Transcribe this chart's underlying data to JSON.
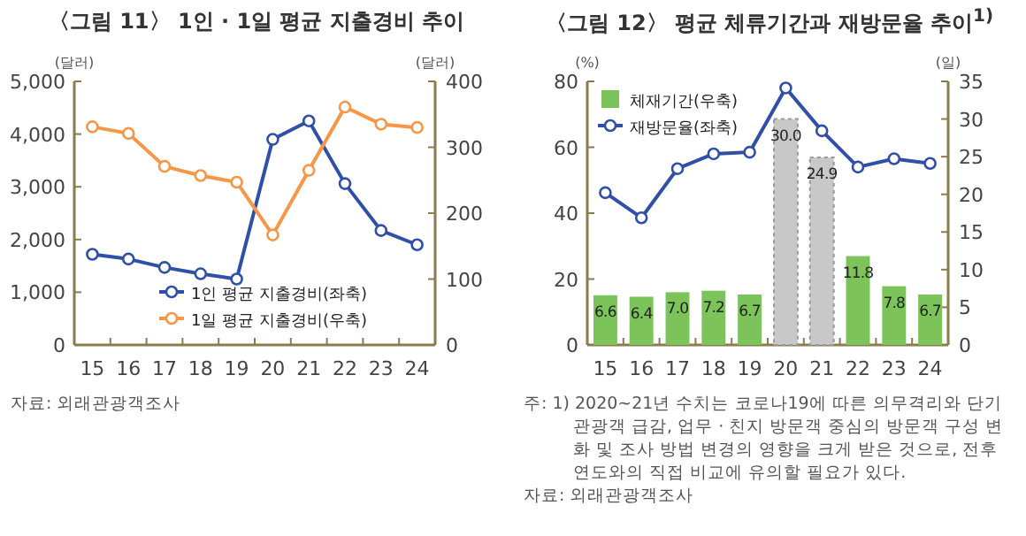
{
  "chart_data": [
    {
      "type": "line",
      "title": "〈그림 11〉 1인 · 1일 평균 지출경비 추이",
      "ylabel": "(달러)",
      "y2label": "(달러)",
      "categories": [
        "15",
        "16",
        "17",
        "18",
        "19",
        "20",
        "21",
        "22",
        "23",
        "24"
      ],
      "series": [
        {
          "name": "1인 평균 지출경비(좌축)",
          "color": "#2f4fa8",
          "values": [
            1720,
            1630,
            1470,
            1350,
            1250,
            3900,
            4250,
            3060,
            2170,
            1900
          ]
        },
        {
          "name": "1일 평균 지출경비(우축)",
          "color": "#f79646",
          "axis": "y2",
          "values": [
            331,
            321,
            271,
            257,
            247,
            167,
            265,
            361,
            335,
            330
          ]
        }
      ],
      "ylim": [
        0,
        5000
      ],
      "yticks": [
        {
          "value": 0,
          "label": "0"
        },
        {
          "value": 1000,
          "label": "1,000"
        },
        {
          "value": 2000,
          "label": "2,000"
        },
        {
          "value": 3000,
          "label": "3,000"
        },
        {
          "value": 4000,
          "label": "4,000"
        },
        {
          "value": 5000,
          "label": "5,000"
        }
      ],
      "y2lim": [
        0,
        400
      ],
      "y2ticks": [
        0,
        100,
        200,
        300,
        400
      ],
      "marker": "circle",
      "legend": "bottom right",
      "grid": false,
      "annotations": [
        "자료: 외래관광객조사"
      ]
    },
    {
      "type": "bar",
      "title": "〈그림 12〉 평균 체류기간과 재방문율 추이$^{1)}$",
      "ylabel": "(%)",
      "y2label": "(일)",
      "categories": [
        "15",
        "16",
        "17",
        "18",
        "19",
        "20",
        "21",
        "22",
        "23",
        "24"
      ],
      "series": [
        {
          "name": "체재기간(우축)",
          "type": "bar",
          "axis": "y2",
          "color": "#7cc35a",
          "colors": [
            "#7cc35a",
            "#7cc35a",
            "#7cc35a",
            "#7cc35a",
            "#7cc35a",
            "#c8c8c8",
            "#c8c8c8",
            "#7cc35a",
            "#7cc35a",
            "#7cc35a"
          ],
          "values": [
            6.6,
            6.4,
            7.0,
            7.2,
            6.7,
            30.0,
            24.9,
            11.8,
            7.8,
            6.7
          ],
          "value_labels": [
            "6.6",
            "6.4",
            "7.0",
            "7.2",
            "6.7",
            "30.0",
            "24.9",
            "11.8",
            "7.8",
            "6.7"
          ]
        },
        {
          "name": "재방문율(좌축)",
          "type": "line",
          "color": "#2f4fa8",
          "values": [
            46.2,
            38.6,
            53.5,
            58.0,
            58.5,
            78.0,
            65.0,
            54.0,
            56.5,
            55.1
          ]
        }
      ],
      "ylim": [
        0,
        80
      ],
      "yticks": [
        0,
        20,
        40,
        60,
        80
      ],
      "y2lim": [
        0,
        35
      ],
      "y2ticks": [
        0,
        5,
        10,
        15,
        20,
        25,
        30,
        35
      ],
      "marker": "circle",
      "legend": "top left",
      "grid": false,
      "annotations": [
        "주: 1) 2020~21년 수치는 코로나19에 따른 의무격리와 단기 관광객 급감, 업무 · 친지 방문객 중심의 방문객 구성 변화 및 조사 방법 변경의 영향을 크게 받은 것으로, 전후 연도와의 직접 비교에 유의할 필요가 있다.",
        "자료: 외래관광객조사"
      ]
    }
  ]
}
